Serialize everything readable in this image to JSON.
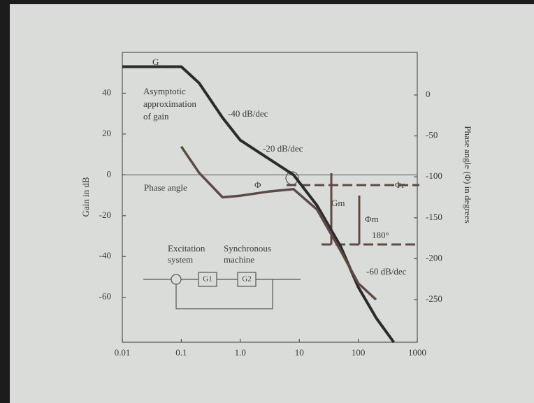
{
  "chart_data": {
    "type": "line",
    "y_label": "Gain in dB",
    "y2_label": "Phase angle (Φ) in degrees",
    "xscale": "log",
    "xlim": [
      0.01,
      1000
    ],
    "xticks": [
      0.01,
      0.1,
      {
        "value": 1,
        "label": "1.0"
      },
      10,
      100,
      1000
    ],
    "ylim": [
      -82,
      60
    ],
    "yticks": [
      40,
      20,
      0,
      -20,
      -40,
      -60
    ],
    "y2lim": [
      -302,
      52
    ],
    "y2ticks": [
      0,
      -50,
      -100,
      -150,
      -200,
      -250
    ],
    "grid": false,
    "series": [
      {
        "name": "G",
        "color": "#2b2b2b",
        "x": [
          0.01,
          0.1,
          0.2,
          0.5,
          1,
          3,
          8,
          20,
          50,
          100,
          200,
          400
        ],
        "values": [
          53,
          53,
          45,
          28,
          17,
          8,
          0,
          -15,
          -35,
          -55,
          -70,
          -82
        ]
      },
      {
        "name": "Phase angle",
        "color": "#5e4a45",
        "axis": "y2",
        "x": [
          0.1,
          0.2,
          0.5,
          1,
          3,
          8,
          20,
          50,
          100,
          200
        ],
        "values": [
          -63,
          -95,
          -125,
          -123,
          -118,
          -115,
          -140,
          -190,
          -230,
          -250
        ]
      }
    ],
    "annotations": [
      "Asymptotic",
      "approximation",
      "of gain",
      "-40 dB/dec",
      "-20 dB/dec",
      "Φ",
      "Φr",
      "Gm",
      "Φm",
      "180°",
      "-60 dB/dec",
      "Excitation",
      "system",
      "Synchronous",
      "machine",
      "G1",
      "G2"
    ]
  }
}
